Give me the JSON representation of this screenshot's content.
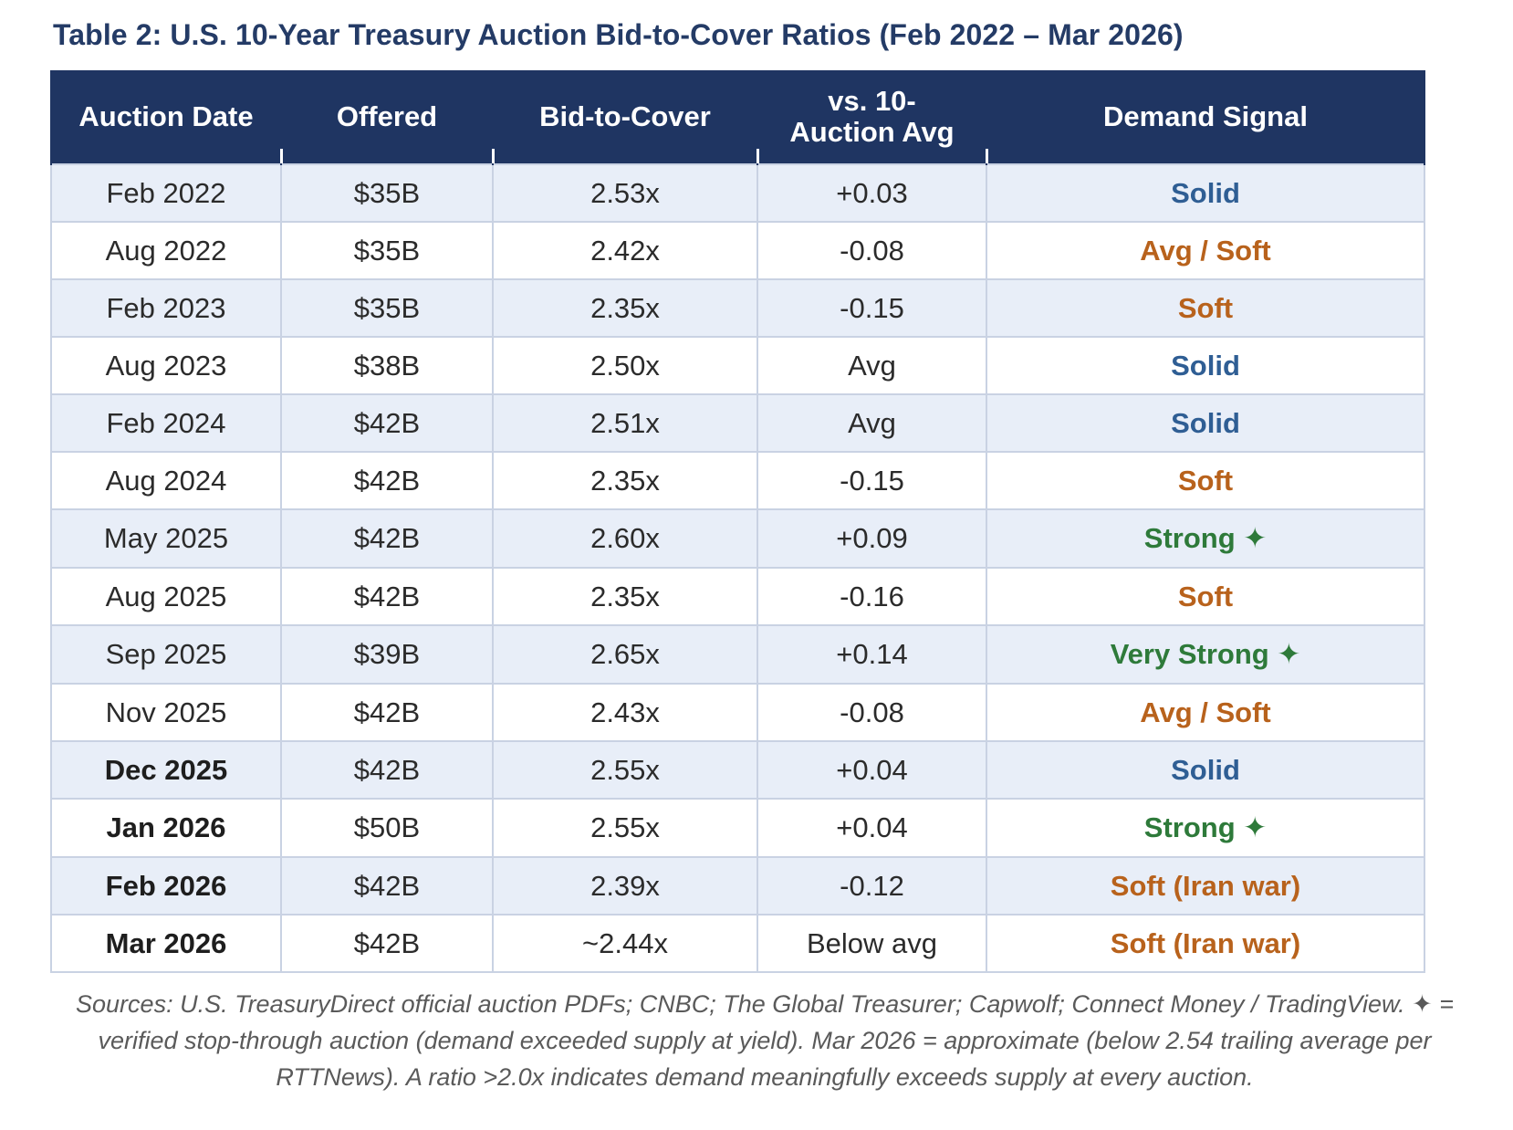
{
  "table": {
    "title": "Table 2: U.S. 10-Year Treasury Auction Bid-to-Cover Ratios (Feb 2022 – Mar 2026)",
    "headers": {
      "date": "Auction Date",
      "offered": "Offered",
      "btc": "Bid-to-Cover",
      "vs_avg": "vs. 10-Auction Avg",
      "signal": "Demand Signal"
    },
    "rows": [
      {
        "date": "Feb 2022",
        "offered": "$35B",
        "btc": "2.53x",
        "vs_avg": "+0.03",
        "signal": "Solid",
        "signal_color": "#2f5e94",
        "bold_date": false
      },
      {
        "date": "Aug 2022",
        "offered": "$35B",
        "btc": "2.42x",
        "vs_avg": "-0.08",
        "signal": "Avg / Soft",
        "signal_color": "#b8621c",
        "bold_date": false
      },
      {
        "date": "Feb 2023",
        "offered": "$35B",
        "btc": "2.35x",
        "vs_avg": "-0.15",
        "signal": "Soft",
        "signal_color": "#b8621c",
        "bold_date": false
      },
      {
        "date": "Aug 2023",
        "offered": "$38B",
        "btc": "2.50x",
        "vs_avg": "Avg",
        "signal": "Solid",
        "signal_color": "#2f5e94",
        "bold_date": false
      },
      {
        "date": "Feb 2024",
        "offered": "$42B",
        "btc": "2.51x",
        "vs_avg": "Avg",
        "signal": "Solid",
        "signal_color": "#2f5e94",
        "bold_date": false
      },
      {
        "date": "Aug 2024",
        "offered": "$42B",
        "btc": "2.35x",
        "vs_avg": "-0.15",
        "signal": "Soft",
        "signal_color": "#b8621c",
        "bold_date": false
      },
      {
        "date": "May 2025",
        "offered": "$42B",
        "btc": "2.60x",
        "vs_avg": "+0.09",
        "signal": "Strong ✦",
        "signal_color": "#2e7a3a",
        "bold_date": false
      },
      {
        "date": "Aug 2025",
        "offered": "$42B",
        "btc": "2.35x",
        "vs_avg": "-0.16",
        "signal": "Soft",
        "signal_color": "#b8621c",
        "bold_date": false
      },
      {
        "date": "Sep 2025",
        "offered": "$39B",
        "btc": "2.65x",
        "vs_avg": "+0.14",
        "signal": "Very Strong ✦",
        "signal_color": "#2e7a3a",
        "bold_date": false
      },
      {
        "date": "Nov 2025",
        "offered": "$42B",
        "btc": "2.43x",
        "vs_avg": "-0.08",
        "signal": "Avg / Soft",
        "signal_color": "#b8621c",
        "bold_date": false
      },
      {
        "date": "Dec 2025",
        "offered": "$42B",
        "btc": "2.55x",
        "vs_avg": "+0.04",
        "signal": "Solid",
        "signal_color": "#2f5e94",
        "bold_date": true
      },
      {
        "date": "Jan 2026",
        "offered": "$50B",
        "btc": "2.55x",
        "vs_avg": "+0.04",
        "signal": "Strong ✦",
        "signal_color": "#2e7a3a",
        "bold_date": true
      },
      {
        "date": "Feb 2026",
        "offered": "$42B",
        "btc": "2.39x",
        "vs_avg": "-0.12",
        "signal": "Soft (Iran war)",
        "signal_color": "#b8621c",
        "bold_date": true
      },
      {
        "date": "Mar 2026",
        "offered": "$42B",
        "btc": "~2.44x",
        "vs_avg": "Below avg",
        "signal": "Soft (Iran war)",
        "signal_color": "#b8621c",
        "bold_date": true
      }
    ],
    "footnote": "Sources: U.S. TreasuryDirect official auction PDFs; CNBC; The Global Treasurer; Capwolf; Connect Money / TradingView. ✦ = verified stop-through auction (demand exceeded supply at yield). Mar 2026 = approximate (below 2.54 trailing average per RTTNews). A ratio >2.0x indicates demand meaningfully exceeds supply at every auction."
  }
}
